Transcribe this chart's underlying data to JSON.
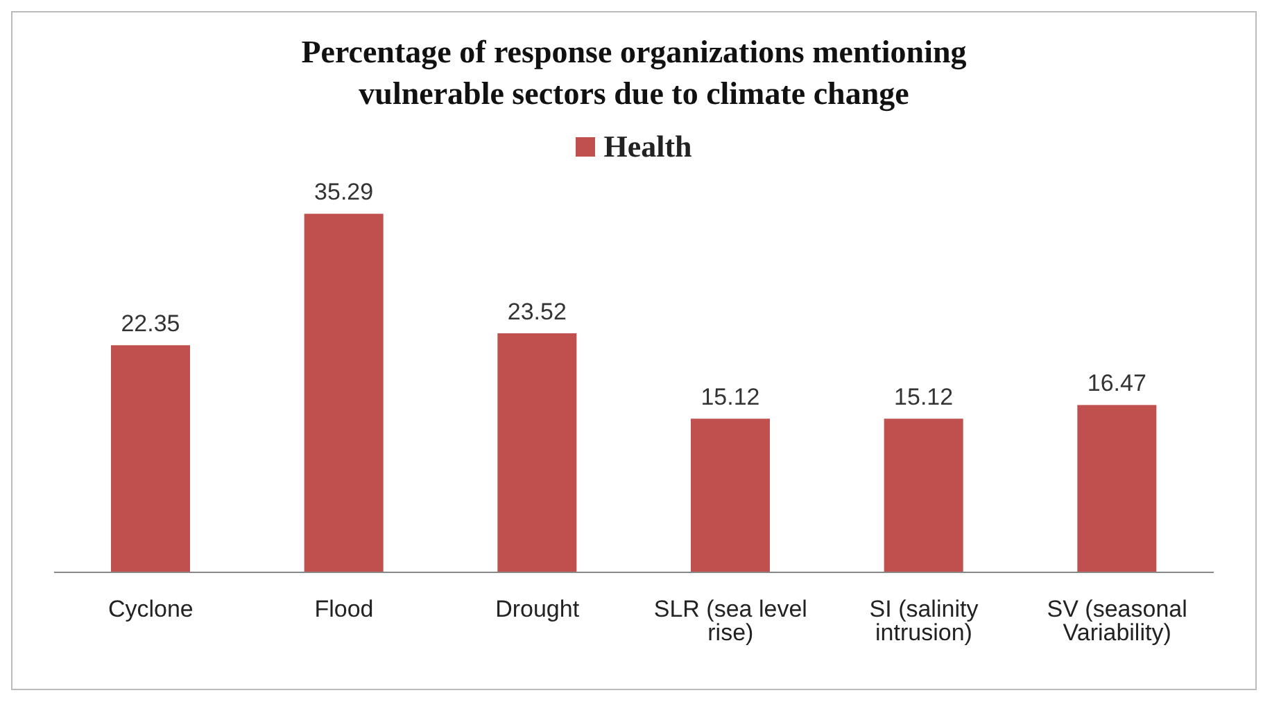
{
  "chart_data": {
    "type": "bar",
    "title": "Percentage of response organizations mentioning vulnerable sectors due to climate change",
    "categories": [
      "Cyclone",
      "Flood",
      "Drought",
      "SLR (sea level rise)",
      "SI (salinity intrusion)",
      "SV (seasonal Variability)"
    ],
    "series": [
      {
        "name": "Health",
        "color": "#c0504d",
        "values": [
          22.35,
          35.29,
          23.52,
          15.12,
          15.12,
          16.47
        ]
      }
    ],
    "data_labels": true,
    "legend": "top",
    "grid": false
  }
}
